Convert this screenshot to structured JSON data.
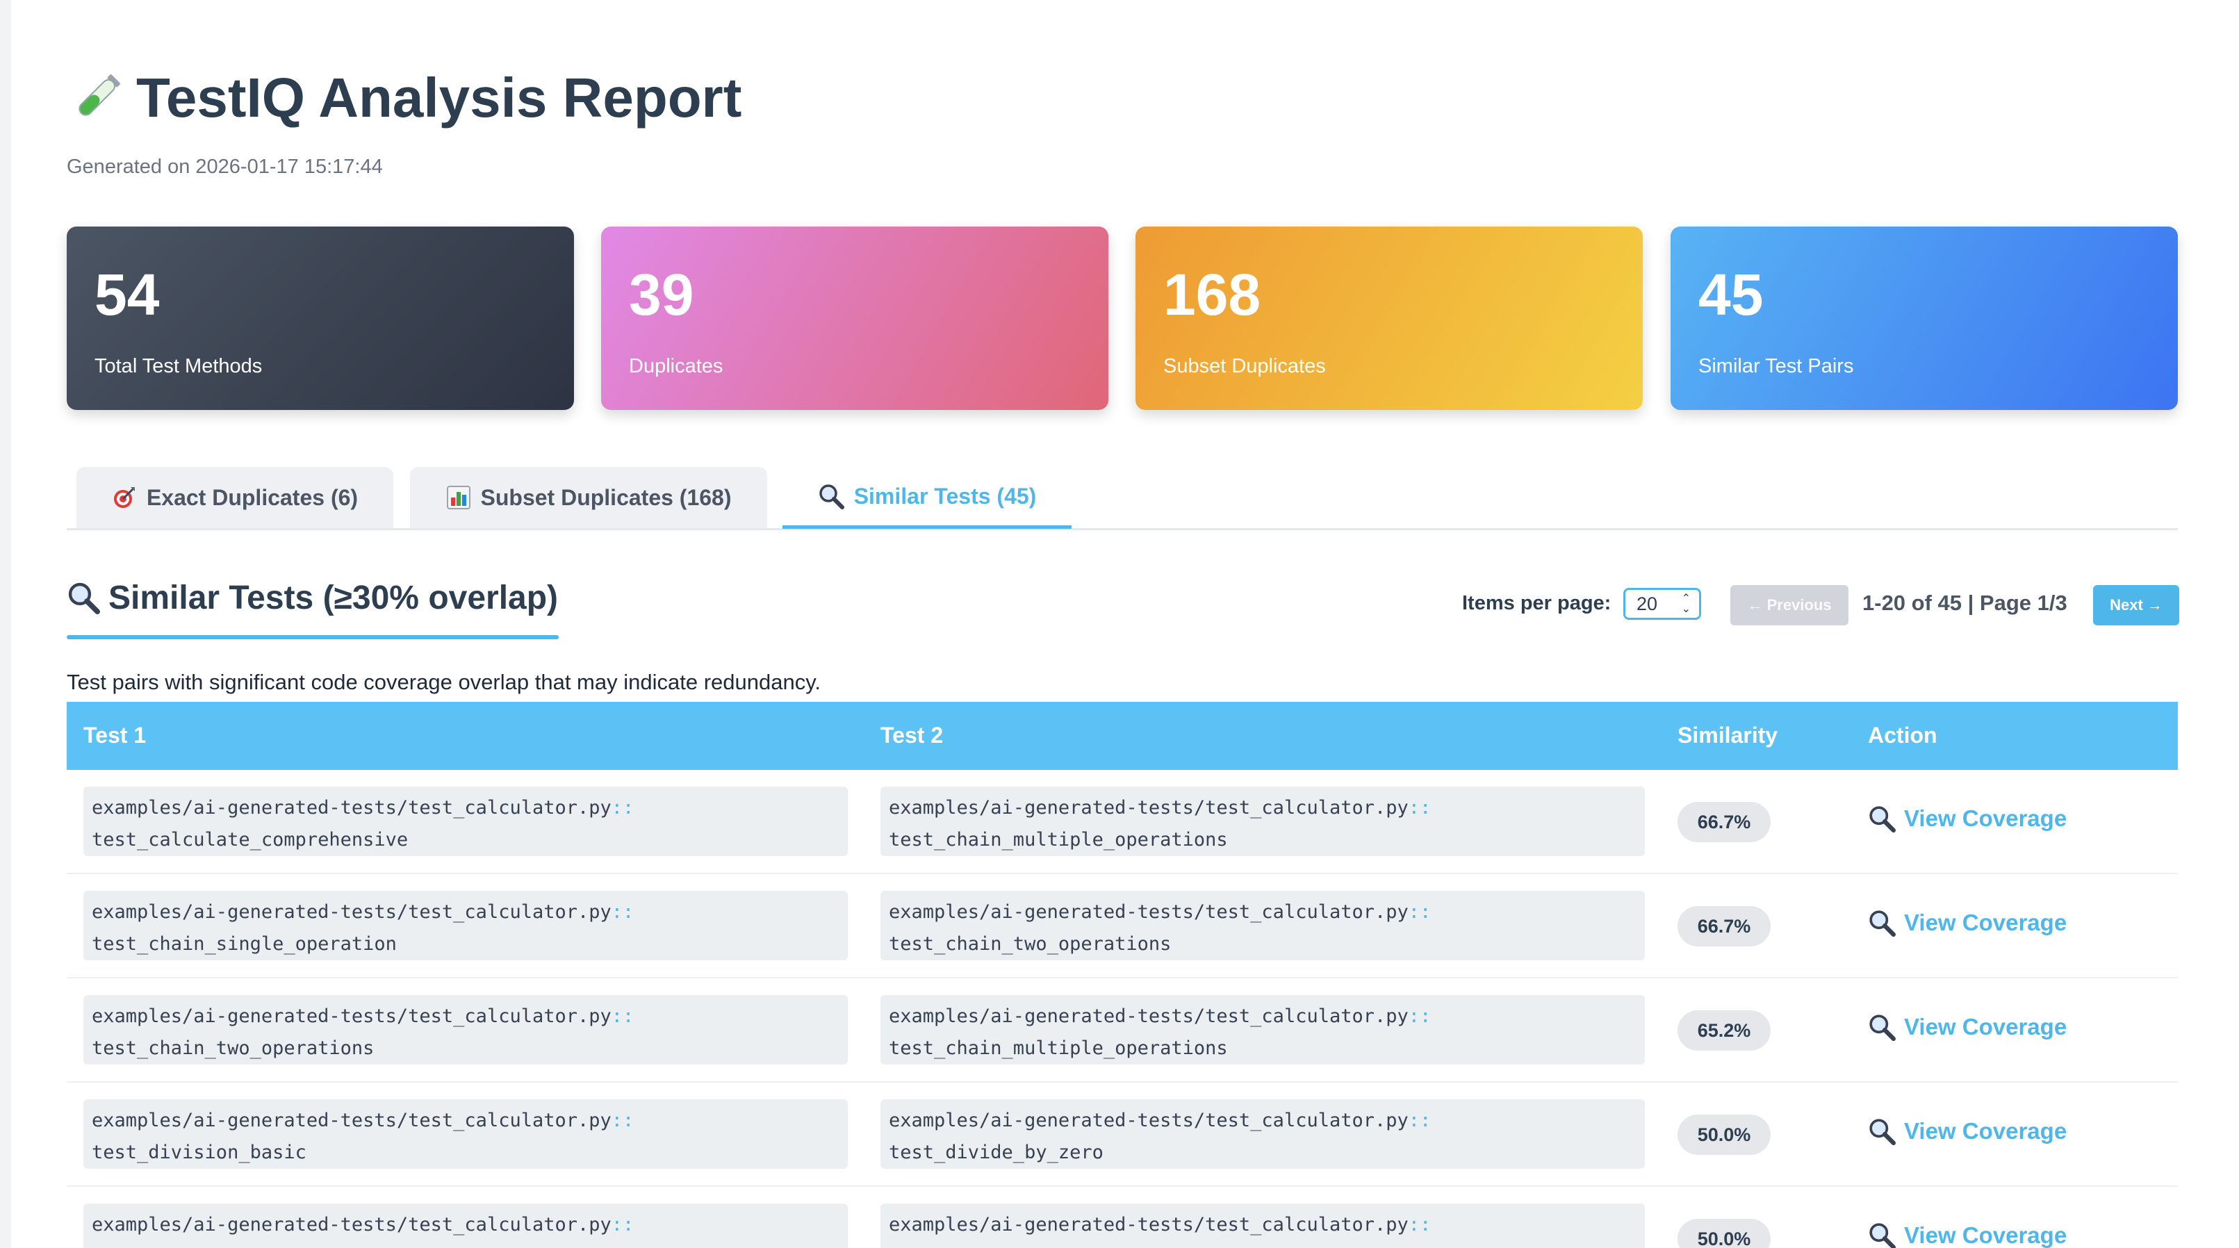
{
  "header": {
    "title": "TestIQ Analysis Report",
    "generated": "Generated on 2026-01-17 15:17:44"
  },
  "stats": [
    {
      "value": "54",
      "label": "Total Test Methods"
    },
    {
      "value": "39",
      "label": "Duplicates"
    },
    {
      "value": "168",
      "label": "Subset Duplicates"
    },
    {
      "value": "45",
      "label": "Similar Test Pairs"
    }
  ],
  "tabs": [
    {
      "label": "Exact Duplicates (6)",
      "icon": "target-icon"
    },
    {
      "label": "Subset Duplicates (168)",
      "icon": "bar-chart-icon"
    },
    {
      "label": "Similar Tests (45)",
      "icon": "magnifier-icon",
      "active": true
    }
  ],
  "section": {
    "title": "Similar Tests (≥30% overlap)",
    "description": "Test pairs with significant code coverage overlap that may indicate redundancy."
  },
  "pagination": {
    "items_per_page_label": "Items per page:",
    "items_per_page_value": "20",
    "previous_label": "← Previous",
    "page_info": "1-20 of 45 | Page 1/3",
    "next_label": "Next →"
  },
  "table": {
    "headers": [
      "Test 1",
      "Test 2",
      "Similarity",
      "Action"
    ],
    "rows": [
      {
        "test1_file": "examples/ai-generated-tests/test_calculator.py",
        "test1_sep": "::",
        "test1_name": "test_calculate_comprehensive",
        "test2_file": "examples/ai-generated-tests/test_calculator.py",
        "test2_sep": "::",
        "test2_name": "test_chain_multiple_operations",
        "similarity": "66.7%",
        "action": "View Coverage"
      },
      {
        "test1_file": "examples/ai-generated-tests/test_calculator.py",
        "test1_sep": "::",
        "test1_name": "test_chain_single_operation",
        "test2_file": "examples/ai-generated-tests/test_calculator.py",
        "test2_sep": "::",
        "test2_name": "test_chain_two_operations",
        "similarity": "66.7%",
        "action": "View Coverage"
      },
      {
        "test1_file": "examples/ai-generated-tests/test_calculator.py",
        "test1_sep": "::",
        "test1_name": "test_chain_two_operations",
        "test2_file": "examples/ai-generated-tests/test_calculator.py",
        "test2_sep": "::",
        "test2_name": "test_chain_multiple_operations",
        "similarity": "65.2%",
        "action": "View Coverage"
      },
      {
        "test1_file": "examples/ai-generated-tests/test_calculator.py",
        "test1_sep": "::",
        "test1_name": "test_division_basic",
        "test2_file": "examples/ai-generated-tests/test_calculator.py",
        "test2_sep": "::",
        "test2_name": "test_divide_by_zero",
        "similarity": "50.0%",
        "action": "View Coverage"
      },
      {
        "test1_file": "examples/ai-generated-tests/test_calculator.py",
        "test1_sep": "::",
        "test1_name": "",
        "test2_file": "examples/ai-generated-tests/test_calculator.py",
        "test2_sep": "::",
        "test2_name": "",
        "similarity": "50.0%",
        "action": "View Coverage"
      }
    ]
  },
  "colors": {
    "accent": "#4fb6ea",
    "table_header": "#5cc2f5",
    "title": "#2c3e50"
  }
}
